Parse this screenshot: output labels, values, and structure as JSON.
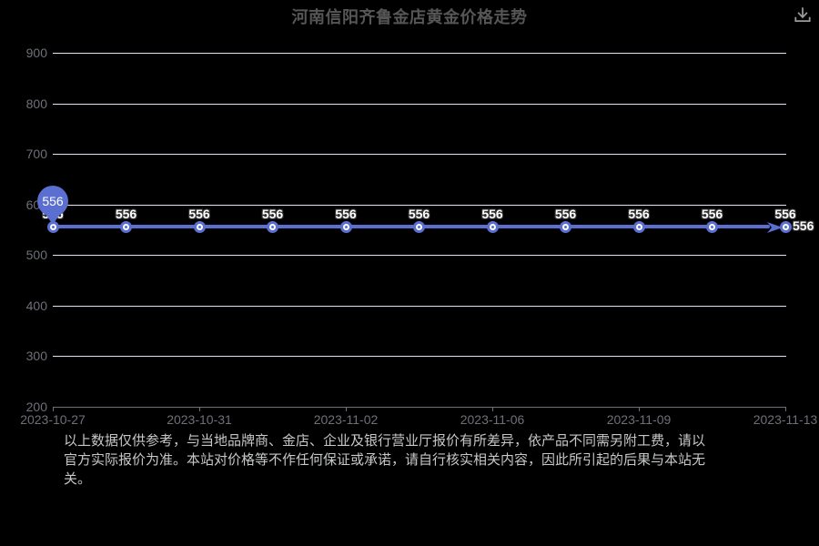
{
  "header": {
    "title": "河南信阳齐鲁金店黄金价格走势"
  },
  "chart_data": {
    "type": "line",
    "title": "河南信阳齐鲁金店黄金价格走势",
    "values": [
      556,
      556,
      556,
      556,
      556,
      556,
      556,
      556,
      556,
      556,
      556
    ],
    "num_points": 11,
    "x_tick_labels": [
      "2023-10-27",
      "2023-10-31",
      "2023-11-02",
      "2023-11-06",
      "2023-11-09",
      "2023-11-13"
    ],
    "x_tick_point_indices": [
      0,
      2,
      4,
      6,
      8,
      10
    ],
    "y_ticks": [
      200,
      300,
      400,
      500,
      600,
      700,
      800,
      900
    ],
    "ylim": [
      200,
      900
    ],
    "grid": "horizontal-only",
    "legend": "none",
    "series_color": "#5a6fd0",
    "axis_label_color": "#6e7079",
    "gridline_color": "#e0e6f1",
    "start_pin_label": "556",
    "end_label": "556",
    "line_end_style": "arrow"
  },
  "icons": {
    "download": "download-icon"
  },
  "disclaimer": {
    "lines": [
      "以上数据仅供参考，与当地品牌商、金店、企业及银行营业厅报价有所差异，依产品不同需另附工费，请以",
      "官方实际报价为准。本站对价格等不作任何保证或承诺，请自行核实相关内容，因此所引起的后果与本站无",
      "关。"
    ]
  }
}
